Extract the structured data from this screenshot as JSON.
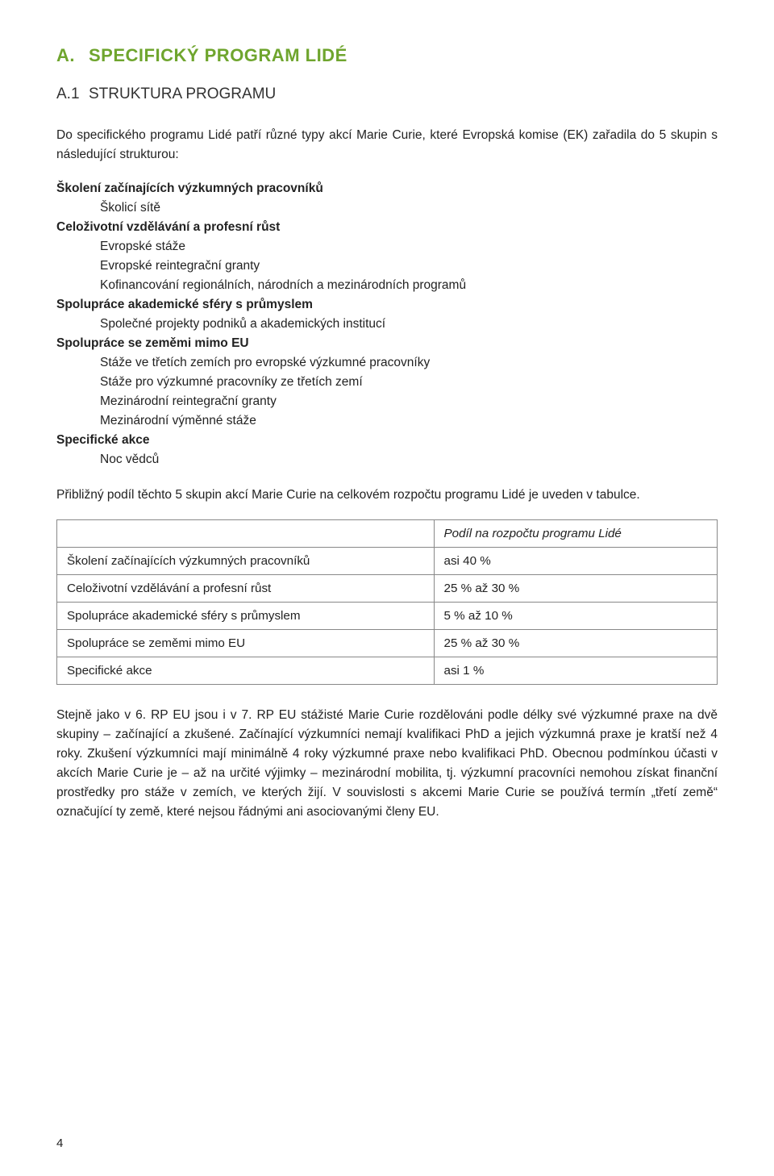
{
  "h1": {
    "prefix": "A.",
    "text": "SPECIFICKÝ PROGRAM LIDÉ"
  },
  "h2": {
    "prefix": "A.1",
    "text": "STRUKTURA PROGRAMU"
  },
  "intro": "Do specifického programu Lidé patří různé typy akcí Marie Curie, které Evropská komise (EK) zařadila do 5 skupin s následující strukturou:",
  "structure": [
    {
      "lvl": 1,
      "text": "Školení začínajících výzkumných pracovníků"
    },
    {
      "lvl": 2,
      "text": "Školicí sítě"
    },
    {
      "lvl": 1,
      "text": "Celoživotní vzdělávání a profesní růst"
    },
    {
      "lvl": 2,
      "text": "Evropské stáže"
    },
    {
      "lvl": 2,
      "text": "Evropské reintegrační granty"
    },
    {
      "lvl": 2,
      "text": "Kofinancování regionálních, národních a mezinárodních programů"
    },
    {
      "lvl": 1,
      "text": "Spolupráce akademické sféry s průmyslem"
    },
    {
      "lvl": 2,
      "text": "Společné projekty podniků a akademických institucí"
    },
    {
      "lvl": 1,
      "text": "Spolupráce se zeměmi mimo EU"
    },
    {
      "lvl": 2,
      "text": "Stáže ve třetích zemích pro evropské výzkumné pracovníky"
    },
    {
      "lvl": 2,
      "text": "Stáže pro výzkumné pracovníky ze třetích zemí"
    },
    {
      "lvl": 2,
      "text": "Mezinárodní reintegrační granty"
    },
    {
      "lvl": 2,
      "text": "Mezinárodní výměnné stáže"
    },
    {
      "lvl": 1,
      "text": "Specifické akce"
    },
    {
      "lvl": 2,
      "text": "Noc vědců"
    }
  ],
  "tableIntro": "Přibližný podíl těchto 5 skupin akcí Marie Curie na celkovém rozpočtu programu Lidé je uveden v tabulce.",
  "table": {
    "header": "Podíl na rozpočtu programu Lidé",
    "rows": [
      {
        "label": "Školení začínajících výzkumných pracovníků",
        "value": "asi 40 %"
      },
      {
        "label": "Celoživotní vzdělávání a profesní růst",
        "value": "25 % až 30 %"
      },
      {
        "label": "Spolupráce akademické sféry s průmyslem",
        "value": "5 % až 10 %"
      },
      {
        "label": "Spolupráce se zeměmi mimo EU",
        "value": "25 % až 30 %"
      },
      {
        "label": "Specifické akce",
        "value": "asi 1 %"
      }
    ]
  },
  "outro": "Stejně jako v 6. RP EU jsou i v 7. RP EU stážisté Marie Curie rozdělováni podle délky své výzkumné praxe na dvě skupiny – začínající a zkušené. Začínající výzkumníci nemají kvalifikaci PhD a jejich výzkumná praxe je kratší než 4 roky. Zkušení výzkumníci mají minimálně 4 roky výzkumné praxe nebo kvalifikaci PhD. Obecnou podmínkou účasti v akcích Marie Curie je – až na určité výjimky – mezinárodní mobilita, tj. výzkumní pracovníci nemohou získat finanční prostředky pro stáže v zemích, ve kterých žijí. V souvislosti s akcemi Marie Curie se používá termín „třetí země“ označující ty země, které nejsou řádnými ani asociovanými členy EU.",
  "pageNumber": "4",
  "colors": {
    "headingGreen": "#6fa52e",
    "text": "#222222",
    "tableBorder": "#888888",
    "background": "#ffffff"
  }
}
